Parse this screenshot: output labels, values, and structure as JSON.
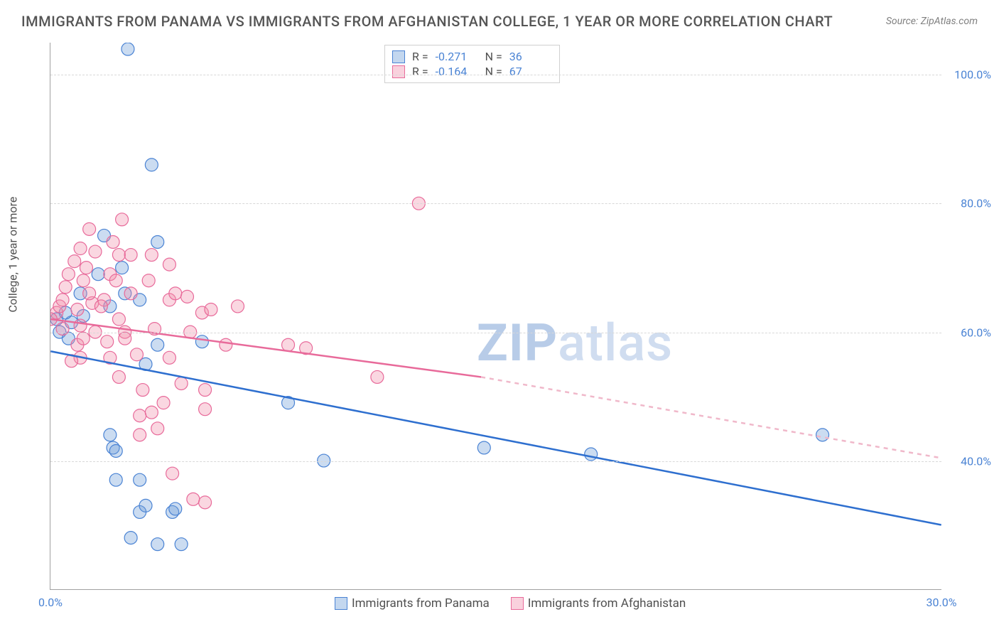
{
  "title": "IMMIGRANTS FROM PANAMA VS IMMIGRANTS FROM AFGHANISTAN COLLEGE, 1 YEAR OR MORE CORRELATION CHART",
  "source": "Source: ZipAtlas.com",
  "ylabel": "College, 1 year or more",
  "watermark_a": "ZIP",
  "watermark_b": "atlas",
  "chart": {
    "type": "scatter",
    "xlim": [
      0,
      30
    ],
    "ylim": [
      20,
      105
    ],
    "x_ticks": [
      {
        "v": 0,
        "l": "0.0%"
      },
      {
        "v": 30,
        "l": "30.0%"
      }
    ],
    "y_ticks": [
      {
        "v": 40,
        "l": "40.0%"
      },
      {
        "v": 60,
        "l": "60.0%"
      },
      {
        "v": 80,
        "l": "80.0%"
      },
      {
        "v": 100,
        "l": "100.0%"
      }
    ],
    "grid_color": "#d8d8d8",
    "background_color": "#ffffff",
    "legend_top": [
      {
        "swatch": "blue",
        "r_label": "R =",
        "r": "-0.271",
        "n_label": "N =",
        "n": "36"
      },
      {
        "swatch": "pink",
        "r_label": "R =",
        "r": "-0.164",
        "n_label": "N =",
        "n": "67"
      }
    ],
    "legend_bottom": [
      {
        "swatch": "blue",
        "label": "Immigrants from Panama"
      },
      {
        "swatch": "pink",
        "label": "Immigrants from Afghanistan"
      }
    ],
    "marker_radius": 9,
    "series": [
      {
        "name": "panama",
        "fill": "rgba(105,155,215,0.35)",
        "stroke": "#4a83d4",
        "points": [
          [
            2.6,
            104
          ],
          [
            3.4,
            86
          ],
          [
            1.8,
            75
          ],
          [
            3.6,
            74
          ],
          [
            0.2,
            62
          ],
          [
            0.3,
            60
          ],
          [
            0.6,
            59
          ],
          [
            0.7,
            61.5
          ],
          [
            1.1,
            62.5
          ],
          [
            1.0,
            66
          ],
          [
            0.5,
            63
          ],
          [
            1.6,
            69
          ],
          [
            2.0,
            64
          ],
          [
            2.5,
            66
          ],
          [
            3.0,
            65
          ],
          [
            3.6,
            58
          ],
          [
            3.2,
            55
          ],
          [
            2.4,
            70
          ],
          [
            2.1,
            42
          ],
          [
            2.2,
            41.5
          ],
          [
            3.0,
            32
          ],
          [
            4.1,
            32
          ],
          [
            4.4,
            27
          ],
          [
            3.6,
            27
          ],
          [
            2.7,
            28
          ],
          [
            3.0,
            37
          ],
          [
            2.2,
            37
          ],
          [
            2.0,
            44
          ],
          [
            3.2,
            33
          ],
          [
            4.2,
            32.5
          ],
          [
            9.2,
            40
          ],
          [
            8.0,
            49
          ],
          [
            14.6,
            42
          ],
          [
            18.2,
            41
          ],
          [
            26,
            44
          ],
          [
            5.1,
            58.5
          ]
        ],
        "trend": {
          "x1": 0,
          "y1": 57,
          "x2": 30,
          "y2": 30,
          "color": "#2e6fcf",
          "width": 2.5
        }
      },
      {
        "name": "afghanistan",
        "fill": "rgba(240,140,170,0.35)",
        "stroke": "#e86a9a",
        "points": [
          [
            2.4,
            77.5
          ],
          [
            1.3,
            76
          ],
          [
            12.4,
            80
          ],
          [
            0.2,
            63
          ],
          [
            0.0,
            62
          ],
          [
            0.3,
            64
          ],
          [
            0.4,
            65
          ],
          [
            0.9,
            63.5
          ],
          [
            1.0,
            61
          ],
          [
            1.4,
            64.5
          ],
          [
            1.1,
            68
          ],
          [
            1.2,
            70
          ],
          [
            2.0,
            69
          ],
          [
            2.2,
            68
          ],
          [
            2.3,
            72
          ],
          [
            2.7,
            72
          ],
          [
            3.4,
            72
          ],
          [
            4.0,
            70.5
          ],
          [
            4.0,
            65
          ],
          [
            4.2,
            66
          ],
          [
            4.6,
            65.5
          ],
          [
            4.7,
            60
          ],
          [
            5.1,
            63
          ],
          [
            5.4,
            63.5
          ],
          [
            6.3,
            64
          ],
          [
            5.9,
            58
          ],
          [
            4.0,
            56
          ],
          [
            4.4,
            52
          ],
          [
            5.2,
            51
          ],
          [
            3.1,
            51
          ],
          [
            2.3,
            53
          ],
          [
            2.0,
            56
          ],
          [
            1.0,
            56
          ],
          [
            0.9,
            58
          ],
          [
            0.7,
            55.5
          ],
          [
            1.5,
            60
          ],
          [
            3.0,
            47
          ],
          [
            3.4,
            47.5
          ],
          [
            3.0,
            44
          ],
          [
            3.6,
            45
          ],
          [
            3.8,
            49
          ],
          [
            5.2,
            48
          ],
          [
            4.1,
            38
          ],
          [
            4.8,
            34
          ],
          [
            5.2,
            33.5
          ],
          [
            2.5,
            60
          ],
          [
            2.5,
            59
          ],
          [
            1.8,
            65
          ],
          [
            1.3,
            66
          ],
          [
            2.3,
            62
          ],
          [
            0.5,
            67
          ],
          [
            0.8,
            71
          ],
          [
            1.5,
            72.5
          ],
          [
            1.7,
            64
          ],
          [
            2.7,
            66
          ],
          [
            3.3,
            68
          ],
          [
            3.5,
            60.5
          ],
          [
            2.9,
            56.5
          ],
          [
            2.1,
            74
          ],
          [
            8.0,
            58
          ],
          [
            8.6,
            57.5
          ],
          [
            11.0,
            53
          ],
          [
            1.0,
            73
          ],
          [
            0.6,
            69
          ],
          [
            0.4,
            60.5
          ],
          [
            1.9,
            58.5
          ],
          [
            1.1,
            59
          ]
        ],
        "trend": {
          "x1": 0,
          "y1": 62,
          "x2": 14.5,
          "y2": 53,
          "color": "#e86a9a",
          "width": 2.5,
          "dash_x1": 14.5,
          "dash_y1": 53,
          "dash_x2": 30.5,
          "dash_y2": 40,
          "dash_color": "#f0b8ca"
        }
      }
    ]
  }
}
